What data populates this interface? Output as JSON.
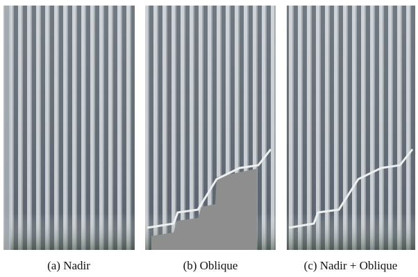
{
  "panels": [
    {
      "caption": "(a) Nadir"
    },
    {
      "caption": "(b) Oblique"
    },
    {
      "caption": "(c) Nadir + Oblique"
    }
  ]
}
